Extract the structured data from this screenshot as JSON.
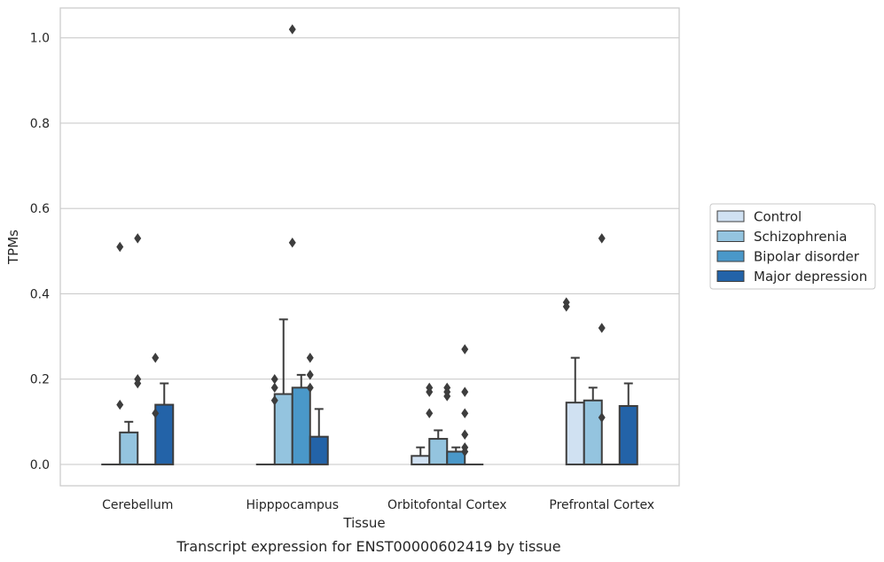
{
  "colors": {
    "Control": "#d0e1f2",
    "Schizophrenia": "#94c4df",
    "Bipolar disorder": "#4a98c9",
    "Major depression": "#2363a8",
    "edge": "#3d3d3d",
    "grid": "#cccccc",
    "frame": "#cccccc"
  },
  "chart_data": {
    "type": "bar",
    "title": "",
    "caption": "Transcript expression for ENST00000602419 by tissue",
    "xlabel": "Tissue",
    "ylabel": "TPMs",
    "ylim": [
      -0.05,
      1.07
    ],
    "yticks": [
      0.0,
      0.2,
      0.4,
      0.6,
      0.8,
      1.0
    ],
    "ytick_labels": [
      "0.0",
      "0.2",
      "0.4",
      "0.6",
      "0.8",
      "1.0"
    ],
    "grid": "horizontal",
    "legend_position": "right",
    "categories": [
      "Cerebellum",
      "Hipppocampus",
      "Orbitofontal Cortex",
      "Prefrontal Cortex"
    ],
    "series": [
      {
        "name": "Control",
        "values": [
          0.0,
          0.0,
          0.02,
          0.145
        ],
        "error_upper": [
          0.0,
          0.0,
          0.04,
          0.25
        ],
        "outliers": [
          [],
          [],
          [],
          [
            0.37,
            0.38
          ]
        ]
      },
      {
        "name": "Schizophrenia",
        "values": [
          0.075,
          0.165,
          0.06,
          0.15
        ],
        "error_upper": [
          0.1,
          0.34,
          0.08,
          0.18
        ],
        "outliers": [
          [
            0.51,
            0.14
          ],
          [
            0.2,
            0.18,
            0.15
          ],
          [
            0.18,
            0.17,
            0.12
          ],
          []
        ]
      },
      {
        "name": "Bipolar disorder",
        "values": [
          0.0,
          0.18,
          0.03,
          0.0
        ],
        "error_upper": [
          0.0,
          0.21,
          0.04,
          0.0
        ],
        "outliers": [
          [
            0.53,
            0.2,
            0.19
          ],
          [
            1.02,
            0.52
          ],
          [
            0.18,
            0.17,
            0.16
          ],
          [
            0.53,
            0.32,
            0.11
          ]
        ]
      },
      {
        "name": "Major depression",
        "values": [
          0.14,
          0.065,
          0.0,
          0.137
        ],
        "error_upper": [
          0.19,
          0.13,
          0.0,
          0.19
        ],
        "outliers": [
          [
            0.25,
            0.12
          ],
          [
            0.25,
            0.21,
            0.18
          ],
          [
            0.27,
            0.17,
            0.12,
            0.07,
            0.04,
            0.03
          ],
          []
        ]
      }
    ]
  }
}
